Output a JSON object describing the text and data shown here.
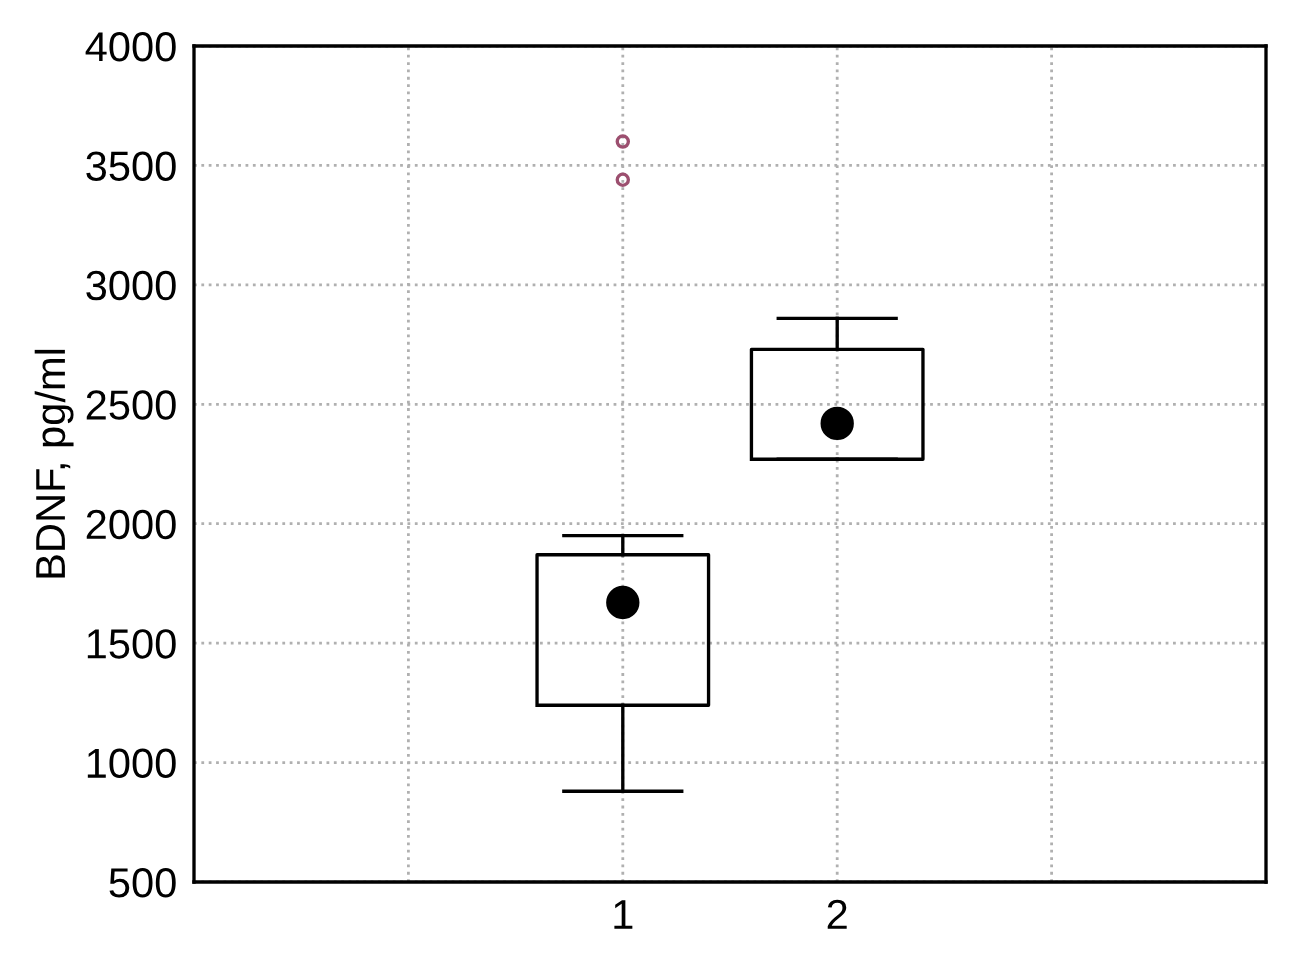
{
  "chart_data": {
    "type": "box",
    "ylabel": "BDNF, pg/ml",
    "categories": [
      null,
      "1",
      "2",
      null
    ],
    "boxes": [
      null,
      {
        "low": 880,
        "q1": 1240,
        "median": 1670,
        "q3": 1870,
        "high": 1950
      },
      {
        "low": 2270,
        "q1": 2270,
        "median": 2420,
        "q3": 2730,
        "high": 2860
      },
      null
    ],
    "color": "#000000",
    "series": [
      {
        "type": "scatter",
        "x": [
          "1",
          "1"
        ],
        "values": [
          3600,
          3440
        ],
        "color": "#9c4f6f",
        "marker": "circle"
      }
    ],
    "ylim": [
      500,
      4000
    ],
    "yticks": [
      500,
      1000,
      1500,
      2000,
      2500,
      3000,
      3500,
      4000
    ],
    "grid": true
  }
}
